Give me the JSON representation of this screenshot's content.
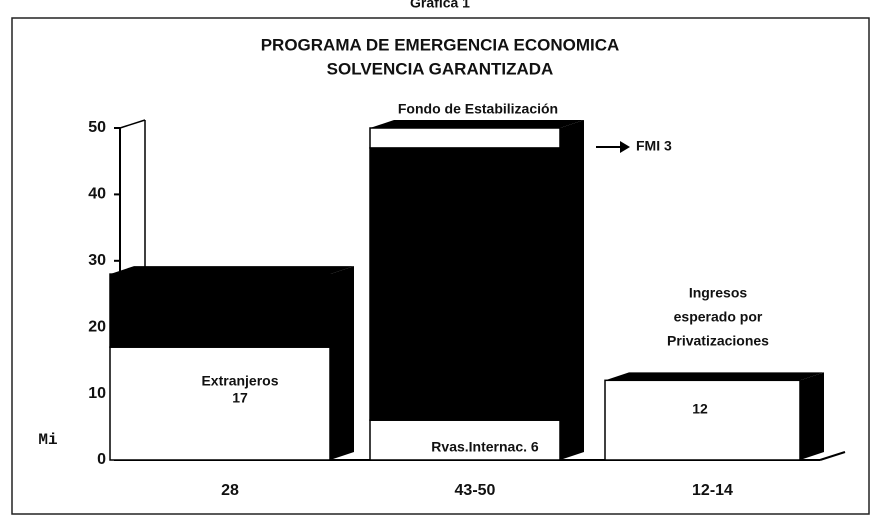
{
  "chart_data": {
    "type": "bar",
    "stacked": true,
    "supertitle": "Grafica 1",
    "title": [
      "PROGRAMA DE EMERGENCIA ECONOMICA",
      "SOLVENCIA GARANTIZADA"
    ],
    "y_label": "Mi",
    "categories": [
      "28",
      "43-50",
      "12-14"
    ],
    "series": [
      {
        "color": "#ffffff",
        "values": [
          17,
          6,
          12
        ]
      },
      {
        "color": "#000000",
        "values": [
          11,
          41,
          null
        ]
      },
      {
        "color": "#ffffff",
        "values": [
          null,
          3,
          null
        ]
      }
    ],
    "ylim": [
      0,
      50
    ],
    "yticks": [
      0,
      10,
      20,
      30,
      40,
      50
    ],
    "annotations": [
      "Fondo de Estabilización",
      "FMI 3",
      "Ingresos",
      "esperado por",
      "Privatizaciones",
      "Extranjeros",
      "17",
      "Rvas.Internac. 6",
      "12"
    ]
  }
}
